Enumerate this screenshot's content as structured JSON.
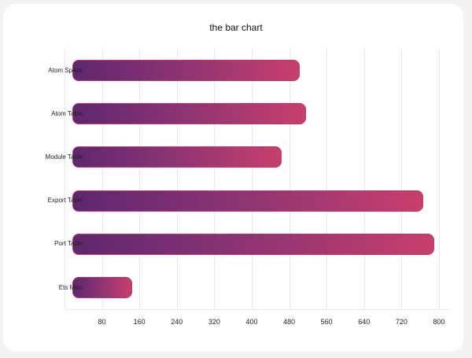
{
  "chart_data": {
    "type": "bar",
    "orientation": "horizontal",
    "title": "the bar chart",
    "xlabel": "",
    "ylabel": "",
    "categories": [
      "Atom Space",
      "Atom Table",
      "Module Table",
      "Export Table",
      "Port Table",
      "Ets Misc"
    ],
    "values": [
      500,
      515,
      463,
      765,
      789,
      143
    ],
    "xlim": [
      0,
      820
    ],
    "xticks": [
      80,
      160,
      240,
      320,
      400,
      480,
      560,
      640,
      720,
      800
    ],
    "grid": true,
    "legend": null,
    "bar_gradient": [
      "#5e276f",
      "#c83f6c"
    ]
  }
}
